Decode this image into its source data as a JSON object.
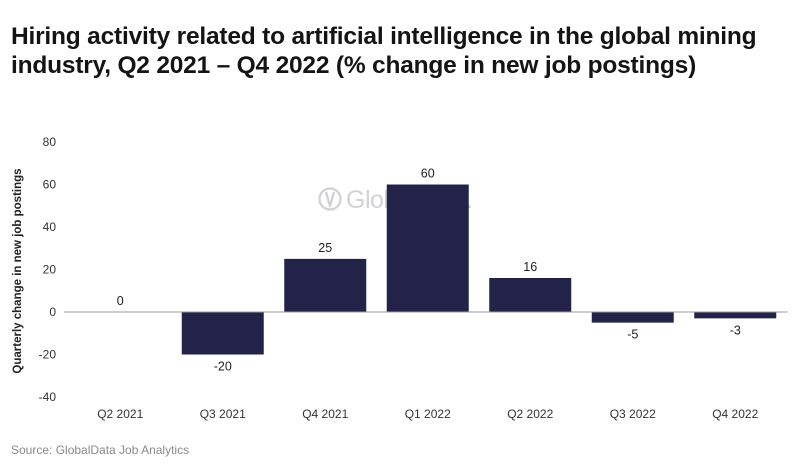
{
  "title": "Hiring activity related to artificial intelligence in the global mining industry, Q2 2021 – Q4 2022 (% change in new job postings)",
  "source": "Source: GlobalData Job Analytics",
  "watermark": "GlobalData.",
  "colors": {
    "bar": "#23234a",
    "zero_line": "#9a9a9a",
    "watermark": "#d2d2d8"
  },
  "chart_data": {
    "type": "bar",
    "categories": [
      "Q2 2021",
      "Q3 2021",
      "Q4 2021",
      "Q1 2022",
      "Q2 2022",
      "Q3 2022",
      "Q4 2022"
    ],
    "values": [
      0,
      -20,
      25,
      60,
      16,
      -5,
      -3
    ],
    "data_labels": [
      "0",
      "-20",
      "25",
      "60",
      "16",
      "-5",
      "-3"
    ],
    "ylabel": "Quarterly change in new job postings",
    "xlabel": "",
    "ylim": [
      -40,
      80
    ],
    "yticks": [
      80,
      60,
      40,
      20,
      0,
      -20,
      -40
    ],
    "grid": false,
    "legend": "none"
  }
}
